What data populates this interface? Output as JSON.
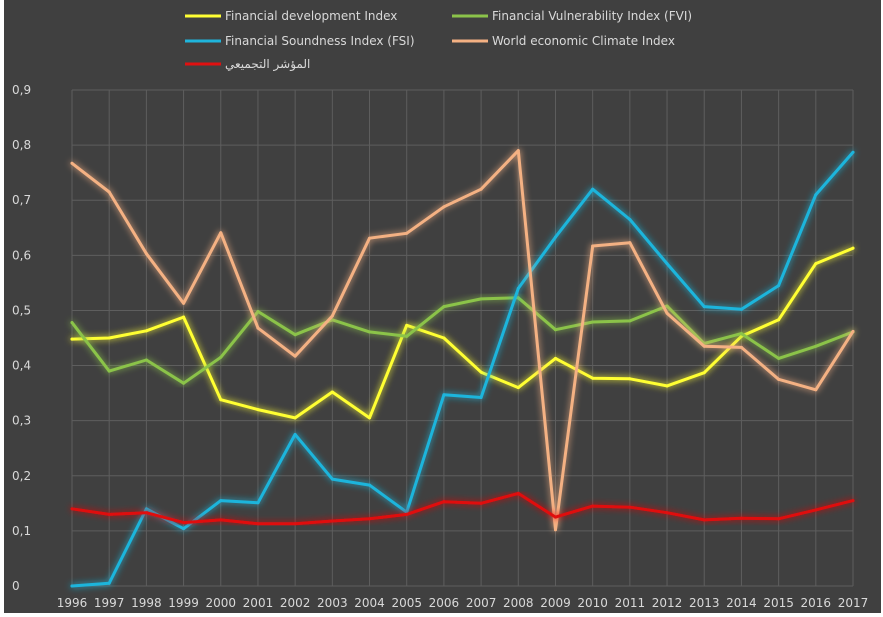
{
  "chart_data": {
    "type": "line",
    "title": "",
    "xlabel": "",
    "ylabel": "",
    "ylim": [
      0,
      0.9
    ],
    "yticks": [
      0,
      0.1,
      0.2,
      0.3,
      0.4,
      0.5,
      0.6,
      0.7,
      0.8,
      0.9
    ],
    "ytick_labels": [
      "0",
      "0,1",
      "0,2",
      "0,3",
      "0,4",
      "0,5",
      "0,6",
      "0,7",
      "0,8",
      "0,9"
    ],
    "grid": true,
    "legend_position": "top",
    "categories": [
      "1996",
      "1997",
      "1998",
      "1999",
      "2000",
      "2001",
      "2002",
      "2003",
      "2004",
      "2005",
      "2006",
      "2007",
      "2008",
      "2009",
      "2010",
      "2011",
      "2012",
      "2013",
      "2014",
      "2015",
      "2016",
      "2017"
    ],
    "series": [
      {
        "name": "Financial development Index",
        "color": "#ffff33",
        "values": [
          0.448,
          0.45,
          0.463,
          0.488,
          0.338,
          0.32,
          0.305,
          0.352,
          0.305,
          0.473,
          0.45,
          0.388,
          0.36,
          0.413,
          0.377,
          0.376,
          0.363,
          0.387,
          0.453,
          0.483,
          0.585,
          0.613
        ]
      },
      {
        "name": "Financial Vulnerability Index (FVI)",
        "color": "#8bc34a",
        "values": [
          0.478,
          0.39,
          0.41,
          0.368,
          0.415,
          0.498,
          0.456,
          0.483,
          0.461,
          0.453,
          0.507,
          0.521,
          0.523,
          0.465,
          0.479,
          0.481,
          0.508,
          0.44,
          0.458,
          0.413,
          0.435,
          0.461
        ]
      },
      {
        "name": "Financial Soundness Index (FSI)",
        "color": "#1fb5dc",
        "values": [
          0.0,
          0.005,
          0.14,
          0.104,
          0.155,
          0.151,
          0.275,
          0.194,
          0.183,
          0.134,
          0.347,
          0.342,
          0.54,
          0.633,
          0.72,
          0.665,
          0.585,
          0.507,
          0.502,
          0.545,
          0.71,
          0.787
        ]
      },
      {
        "name": "World economic Climate Index",
        "color": "#f4b183",
        "values": [
          0.767,
          0.715,
          0.603,
          0.513,
          0.641,
          0.468,
          0.417,
          0.49,
          0.631,
          0.64,
          0.688,
          0.72,
          0.79,
          0.102,
          0.617,
          0.623,
          0.495,
          0.435,
          0.433,
          0.375,
          0.356,
          0.462
        ]
      },
      {
        "name": "المؤشر التجميعي",
        "color": "#e01010",
        "values": [
          0.14,
          0.13,
          0.133,
          0.115,
          0.12,
          0.113,
          0.113,
          0.118,
          0.122,
          0.13,
          0.153,
          0.15,
          0.168,
          0.125,
          0.145,
          0.143,
          0.133,
          0.12,
          0.123,
          0.122,
          0.138,
          0.155
        ]
      }
    ]
  }
}
